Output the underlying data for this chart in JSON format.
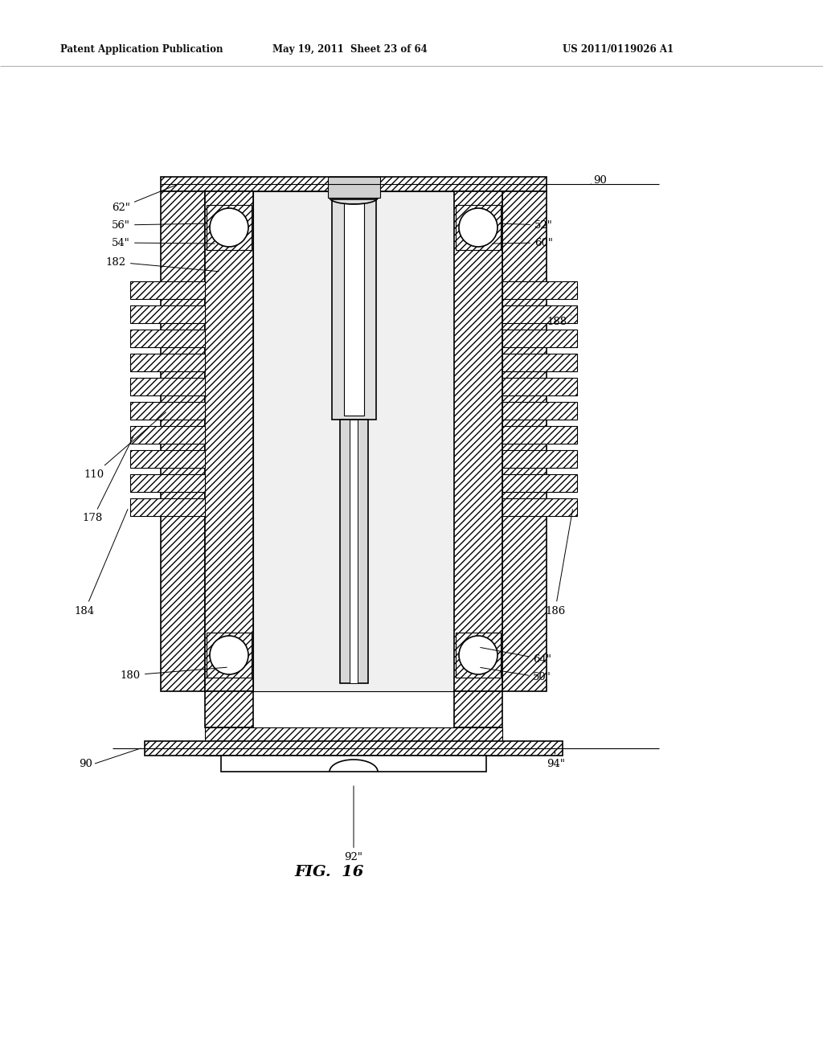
{
  "background_color": "#ffffff",
  "header_left": "Patent Application Publication",
  "header_mid": "May 19, 2011  Sheet 23 of 64",
  "header_right": "US 2011/0119026 A1",
  "figure_label": "FIG. 16",
  "line_color": "#000000",
  "line_width": 1.2,
  "hatch_pattern": "////",
  "hatch_pattern2": "xxxx"
}
